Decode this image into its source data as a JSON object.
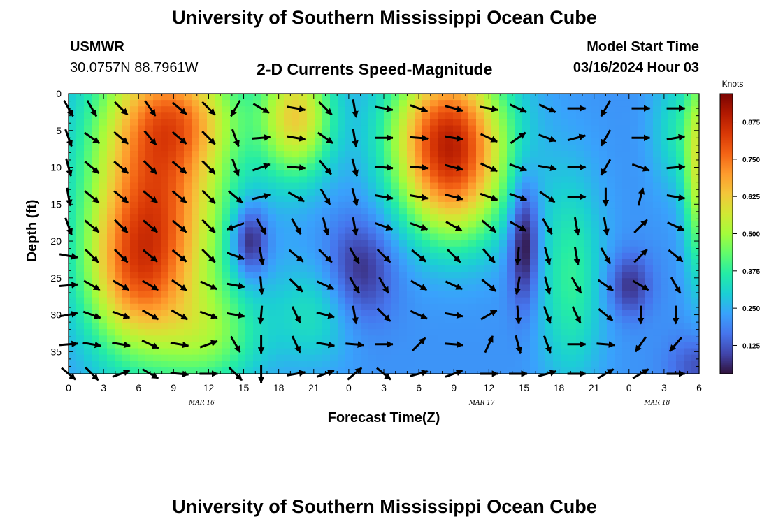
{
  "page": {
    "title": "University of Southern Mississippi Ocean Cube",
    "station": "USMWR",
    "coords": "30.0757N  88.7961W",
    "subtitle": "2-D Currents Speed-Magnitude",
    "start_label": "Model Start Time",
    "start_value": "03/16/2024 Hour 03",
    "footer_title": "University of Southern Mississippi Ocean Cube"
  },
  "chart_data": {
    "type": "heatmap",
    "title": "2-D Currents Speed-Magnitude",
    "xlabel": "Forecast Time(Z)",
    "ylabel": "Depth (ft)",
    "x_ticks": [
      "0",
      "3",
      "6",
      "9",
      "12",
      "15",
      "18",
      "21",
      "0",
      "3",
      "6",
      "9",
      "12",
      "15",
      "18",
      "21",
      "0",
      "3",
      "6"
    ],
    "x_hours": [
      0,
      3,
      6,
      9,
      12,
      15,
      18,
      21,
      24,
      27,
      30,
      33,
      36,
      39,
      42,
      45,
      48,
      51,
      54
    ],
    "xlim": [
      0,
      54
    ],
    "date_labels": [
      {
        "label": "MAR 16",
        "hour": 12
      },
      {
        "label": "MAR 17",
        "hour": 36
      },
      {
        "label": "MAR 18",
        "hour": 51
      }
    ],
    "y_ticks": [
      0,
      5,
      10,
      15,
      20,
      25,
      30,
      35
    ],
    "ylim": [
      0,
      38
    ],
    "y_inverted": true,
    "colorbar": {
      "label": "Knots",
      "ticks": [
        0.875,
        0.75,
        0.625,
        0.5,
        0.375,
        0.25,
        0.125
      ],
      "range": [
        0.03,
        0.97
      ],
      "colors": [
        "#30123b",
        "#4145ab",
        "#4675ed",
        "#39a2fc",
        "#1bcfd4",
        "#24eca6",
        "#61fc6c",
        "#a4fc3b",
        "#d1e834",
        "#f3c63a",
        "#fe9b2d",
        "#f36315",
        "#d93806",
        "#b11901",
        "#7a0402"
      ]
    },
    "speed_features": [
      {
        "hour": 7.5,
        "depth": 13,
        "sh": 4.2,
        "sd": 14,
        "v": 0.55
      },
      {
        "hour": 5.5,
        "depth": 25,
        "sh": 3.0,
        "sd": 7,
        "v": 0.25
      },
      {
        "hour": 10,
        "depth": 3,
        "sh": 3.5,
        "sd": 5,
        "v": 0.2
      },
      {
        "hour": 12.5,
        "depth": 33,
        "sh": 3.0,
        "sd": 5,
        "v": 0.18
      },
      {
        "hour": 19.5,
        "depth": 3,
        "sh": 2.2,
        "sd": 6,
        "v": 0.4
      },
      {
        "hour": 21,
        "depth": 30,
        "sh": 2.5,
        "sd": 5,
        "v": 0.12
      },
      {
        "hour": 32.5,
        "depth": 5,
        "sh": 3.5,
        "sd": 7,
        "v": 0.58
      },
      {
        "hour": 33,
        "depth": 14,
        "sh": 3.2,
        "sd": 6,
        "v": 0.25
      },
      {
        "hour": 43,
        "depth": 25,
        "sh": 2.0,
        "sd": 10,
        "v": 0.17
      },
      {
        "hour": 52,
        "depth": 5,
        "sh": 1.5,
        "sd": 6,
        "v": 0.12
      },
      {
        "hour": 54,
        "depth": 10,
        "sh": 0.9,
        "sd": 10,
        "v": 0.32
      },
      {
        "hour": 15.5,
        "depth": 20,
        "sh": 1.1,
        "sd": 3.5,
        "v": -0.22
      },
      {
        "hour": 25,
        "depth": 24,
        "sh": 2.0,
        "sd": 5,
        "v": -0.15
      },
      {
        "hour": 39,
        "depth": 20,
        "sh": 0.9,
        "sd": 6,
        "v": -0.22
      },
      {
        "hour": 48,
        "depth": 26,
        "sh": 1.3,
        "sd": 3,
        "v": -0.14
      },
      {
        "hour": 54,
        "depth": 37,
        "sh": 1.8,
        "sd": 3,
        "v": -0.1
      }
    ],
    "vector_times": [
      0,
      2,
      4.5,
      7,
      9.5,
      12,
      14.3,
      16.5,
      19.5,
      22,
      24.5,
      27,
      30,
      33,
      36,
      38.5,
      41,
      43.5,
      46,
      49,
      52
    ],
    "vector_depths": [
      2,
      6,
      10,
      14,
      18,
      22,
      26,
      30,
      34,
      38
    ],
    "vectors": [
      [
        -60,
        -60,
        -45,
        -55,
        -40,
        -45,
        -120,
        -30,
        -10,
        -45,
        -80,
        -10,
        -20,
        -15,
        -10,
        -25,
        -25,
        0,
        -120,
        0,
        0
      ],
      [
        -70,
        -35,
        -40,
        -50,
        -40,
        -45,
        -70,
        5,
        -10,
        -35,
        -80,
        0,
        -5,
        -10,
        -25,
        35,
        -20,
        15,
        -120,
        0,
        10
      ],
      [
        -75,
        -40,
        -40,
        -45,
        -40,
        -45,
        -70,
        20,
        -5,
        -50,
        -75,
        -5,
        -5,
        -15,
        -25,
        -20,
        -10,
        0,
        -120,
        -20,
        5
      ],
      [
        -80,
        -40,
        -40,
        -40,
        -40,
        -45,
        -40,
        15,
        -30,
        -60,
        -75,
        -10,
        -10,
        -15,
        -20,
        -20,
        -35,
        0,
        -90,
        75,
        -10
      ],
      [
        -70,
        -40,
        -45,
        -40,
        -40,
        -45,
        -160,
        -60,
        -60,
        -75,
        -80,
        -20,
        -20,
        -30,
        -40,
        -30,
        -60,
        -80,
        -80,
        45,
        -25
      ],
      [
        -10,
        -45,
        -45,
        -40,
        -40,
        -45,
        -20,
        -80,
        -40,
        -45,
        -60,
        -45,
        -40,
        -45,
        -50,
        -95,
        -75,
        -80,
        -60,
        45,
        -40
      ],
      [
        5,
        -30,
        -30,
        -30,
        -35,
        -25,
        -10,
        -85,
        -45,
        -25,
        -60,
        -60,
        -30,
        -25,
        -40,
        -100,
        -75,
        -60,
        -35,
        -30,
        -60
      ],
      [
        10,
        -20,
        -20,
        -30,
        -30,
        -20,
        -10,
        -95,
        -65,
        -15,
        -80,
        -45,
        -25,
        -10,
        30,
        -85,
        -70,
        -65,
        -40,
        -90,
        -90
      ],
      [
        5,
        -10,
        -10,
        -25,
        -10,
        20,
        -60,
        -90,
        -65,
        -10,
        -5,
        0,
        45,
        -5,
        65,
        -75,
        -70,
        0,
        -5,
        -125,
        -130
      ],
      [
        -40,
        -45,
        20,
        -30,
        -5,
        0,
        -45,
        -90,
        10,
        20,
        40,
        -40,
        15,
        20,
        0,
        0,
        15,
        0,
        30,
        30,
        0
      ]
    ]
  }
}
